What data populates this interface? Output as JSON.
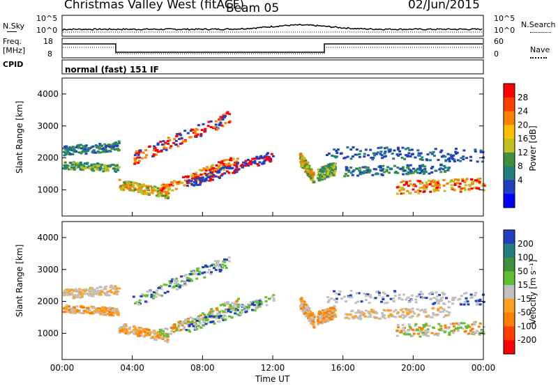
{
  "header": {
    "station": "Christmas Valley West (fitACF)",
    "beam": "Beam 05",
    "date": "02/Jun/2015"
  },
  "noise_panel": {
    "left_label": "N.Sky",
    "right_label": "N.Search",
    "ticks_left": [
      "10^5",
      "10^0"
    ],
    "ticks_right": [
      "10^5",
      "10^0"
    ]
  },
  "freq_panel": {
    "left_label_1": "Freq.",
    "left_label_2": "[MHz]",
    "ticks_left": [
      "18",
      "8"
    ],
    "right_label": "Nave",
    "ticks_right": [
      "60",
      "0"
    ],
    "cpid_label": "CPID",
    "cpid_text": "normal (fast) 151 IF"
  },
  "chart_data": [
    {
      "type": "heatmap",
      "parameter": "Power",
      "ylabel": "Slant Range [km]",
      "xlabel": "Time UT",
      "ylim": [
        180,
        4500
      ],
      "yticks": [
        1000,
        2000,
        3000,
        4000
      ],
      "xlim_hours": [
        0,
        24
      ],
      "xticks": [
        "00:00",
        "04:00",
        "08:00",
        "12:00",
        "16:00",
        "20:00",
        "00:00"
      ],
      "colorbar": {
        "label": "Power [dB]",
        "ticks": [
          "28",
          "24",
          "20",
          "16",
          "12",
          "8",
          "4"
        ],
        "colors": [
          "#ff0000",
          "#ff4000",
          "#ff8000",
          "#ffc000",
          "#c0c020",
          "#409040",
          "#208080",
          "#2040c0",
          "#0000ff"
        ]
      }
    },
    {
      "type": "heatmap",
      "parameter": "Velocity",
      "ylabel": "Slant Range [km]",
      "xlabel": "Time UT",
      "ylim": [
        180,
        4500
      ],
      "yticks": [
        1000,
        2000,
        3000,
        4000
      ],
      "xlim_hours": [
        0,
        24
      ],
      "xticks": [
        "00:00",
        "04:00",
        "08:00",
        "12:00",
        "16:00",
        "20:00",
        "00:00"
      ],
      "colorbar": {
        "label": "Velocity [m s⁻¹]",
        "ticks": [
          "200",
          "100",
          "50",
          "15",
          "-15",
          "-50",
          "-100",
          "-200"
        ],
        "colors": [
          "#2040c0",
          "#208080",
          "#409040",
          "#60c030",
          "#c0c0c0",
          "#ffa020",
          "#ff8000",
          "#ff4000",
          "#ff0000"
        ]
      }
    }
  ]
}
